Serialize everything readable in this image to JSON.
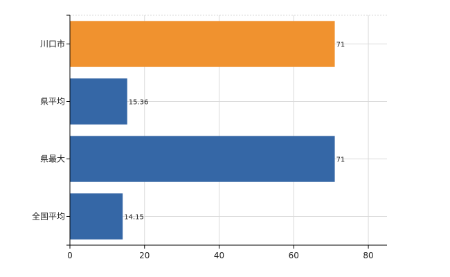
{
  "chart_data": {
    "type": "bar",
    "orientation": "horizontal",
    "title": "",
    "xlabel": "",
    "ylabel": "",
    "categories": [
      "川口市",
      "県平均",
      "県最大",
      "全国平均"
    ],
    "values": [
      71,
      15.36,
      71,
      14.15
    ],
    "value_labels": [
      "71",
      "15.36",
      "71",
      "14.15"
    ],
    "bar_colors": [
      "#f0922f",
      "#3567a6",
      "#3567a6",
      "#3567a6"
    ],
    "xlim": [
      0,
      85
    ],
    "xticks": [
      0,
      20,
      40,
      60,
      80
    ],
    "grid": true,
    "legend": "none"
  }
}
